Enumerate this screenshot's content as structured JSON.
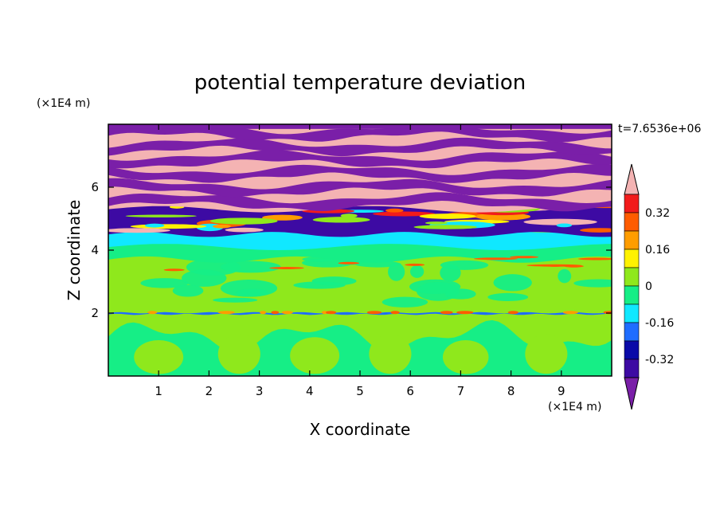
{
  "chart_data": {
    "type": "heatmap",
    "title": "potential temperature deviation",
    "xlabel": "X coordinate",
    "ylabel": "Z coordinate",
    "x_unit": "(×1E4 m)",
    "y_unit": "(×1E4 m)",
    "time_label": "t=7.6536e+06",
    "xlim": [
      0,
      10
    ],
    "ylim": [
      0,
      8
    ],
    "x_ticks": [
      1,
      2,
      3,
      4,
      5,
      6,
      7,
      8,
      9
    ],
    "y_ticks": [
      2,
      4,
      6
    ],
    "colorbar": {
      "levels": [
        -0.4,
        -0.32,
        -0.24,
        -0.16,
        -0.08,
        0,
        0.08,
        0.16,
        0.24,
        0.32,
        0.4
      ],
      "colors": [
        "#7a1fa8",
        "#3d0aa3",
        "#0a0aa8",
        "#1f6dff",
        "#10e8ff",
        "#16ee86",
        "#8fe81c",
        "#fff200",
        "#ff9d00",
        "#ff5c00",
        "#f21b1b",
        "#f4b3b3"
      ],
      "tick_labels": [
        "0.32",
        "0.16",
        "0",
        "-0.16",
        "-0.32"
      ],
      "tick_values": [
        0.32,
        0.16,
        0,
        -0.16,
        -0.32
      ]
    },
    "bands": [
      {
        "z_min": 0.0,
        "z_max": 1.9,
        "level": 0,
        "pattern": "green/yellow-green cellular structures"
      },
      {
        "z_min": 1.9,
        "z_max": 2.1,
        "level": -0.2,
        "pattern": "thin blue/orange interface line"
      },
      {
        "z_min": 2.1,
        "z_max": 3.8,
        "level": 0.05,
        "pattern": "yellow-green with green patches"
      },
      {
        "z_min": 3.8,
        "z_max": 4.5,
        "level": -0.1,
        "pattern": "green and cyan layer"
      },
      {
        "z_min": 4.5,
        "z_max": 5.6,
        "level": 0.3,
        "pattern": "red/orange/yellow mixing layer"
      },
      {
        "z_min": 5.6,
        "z_max": 8.0,
        "level": 0.45,
        "pattern": "alternating pink and purple stripes"
      }
    ]
  }
}
